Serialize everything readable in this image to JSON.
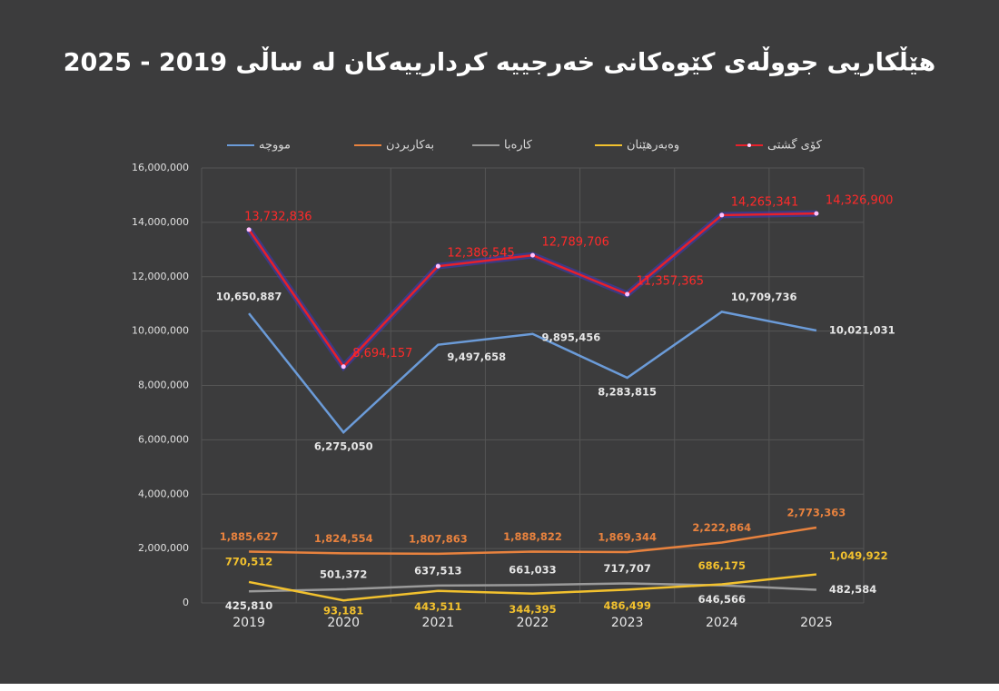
{
  "chart_data": {
    "type": "line",
    "title": "هێڵکاریی جووڵەی کێوەکانی خەرجییە کردارییەکان لە ساڵی 2019 - 2025",
    "categories": [
      "2019",
      "2020",
      "2021",
      "2022",
      "2023",
      "2024",
      "2025"
    ],
    "ylim": [
      0,
      16000000
    ],
    "yticks": [
      0,
      {
        "value": 2000000,
        "label": "2,000,000"
      },
      {
        "value": 4000000,
        "label": "4,000,000"
      },
      {
        "value": 6000000,
        "label": "6,000,000"
      },
      {
        "value": 8000000,
        "label": "8,000,000"
      },
      {
        "value": 10000000,
        "label": "10,000,000"
      },
      {
        "value": 12000000,
        "label": "12,000,000"
      },
      {
        "value": 14000000,
        "label": "14,000,000"
      },
      {
        "value": 16000000,
        "label": "16,000,000"
      }
    ],
    "grid": true,
    "legend": "top",
    "series": [
      {
        "name": "مووچە",
        "color": "#6b9bd8",
        "values": [
          10650887,
          6275050,
          9497658,
          9895456,
          8283815,
          10709736,
          10021031
        ],
        "value_labels": [
          "10,650,887",
          "6,275,050",
          "9,497,658",
          "9,895,456",
          "8,283,815",
          "10,709,736",
          "10,021,031"
        ]
      },
      {
        "name": "بەکاربردن",
        "color": "#e8823e",
        "values": [
          1885627,
          1824554,
          1807863,
          1888822,
          1869344,
          2222864,
          2773363
        ],
        "value_labels": [
          "1,885,627",
          "1,824,554",
          "1,807,863",
          "1,888,822",
          "1,869,344",
          "2,222,864",
          "2,773,363"
        ]
      },
      {
        "name": "کارەبا",
        "color": "#9a9a9a",
        "values": [
          425810,
          501372,
          637513,
          661033,
          717707,
          646566,
          482584
        ],
        "value_labels": [
          "425,810",
          "501,372",
          "637,513",
          "661,033",
          "717,707",
          "646,566",
          "482,584"
        ]
      },
      {
        "name": "وەبەرهێنان",
        "color": "#f2c12e",
        "values": [
          770512,
          93181,
          443511,
          344395,
          486499,
          686175,
          1049922
        ],
        "value_labels": [
          "770,512",
          "93,181",
          "443,511",
          "344,395",
          "486,499",
          "686,175",
          "1,049,922"
        ]
      },
      {
        "name": "کۆی گشتی",
        "color": "#e8202a",
        "values": [
          13732836,
          8694157,
          12386545,
          12789706,
          11357365,
          14265341,
          14326900
        ],
        "value_labels": [
          "13,732,836",
          "8,694,157",
          "12,386,545",
          "12,789,706",
          "11,357,365",
          "14,265,341",
          "14,326,900"
        ]
      }
    ]
  }
}
